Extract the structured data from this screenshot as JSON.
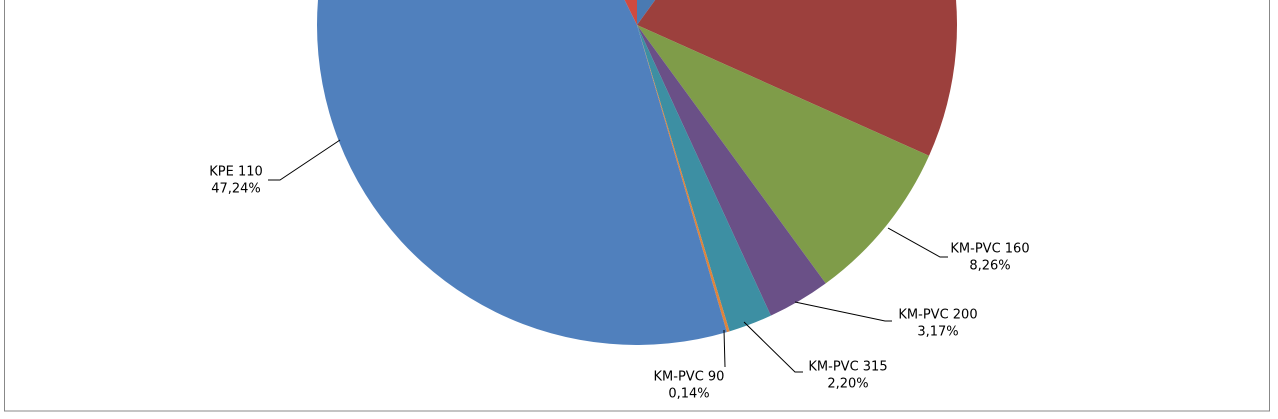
{
  "chart_data": {
    "type": "pie",
    "categories": [
      null,
      null,
      "KM-PVC 160",
      "KM-PVC 200",
      "KM-PVC 315",
      "KM-PVC 90",
      "KPE 110",
      null
    ],
    "values": [
      10.0,
      21.7,
      8.26,
      3.17,
      2.2,
      0.14,
      47.24,
      7.29
    ],
    "value_labels": [
      null,
      null,
      "8,26%",
      "3,17%",
      "2,20%",
      "0,14%",
      "47,24%",
      null
    ],
    "colors": [
      "#4a7ab2",
      "#9c403d",
      "#7f9c49",
      "#6a5087",
      "#3d8fa3",
      "#e0833a",
      "#5080bd",
      "#d04a40"
    ]
  }
}
